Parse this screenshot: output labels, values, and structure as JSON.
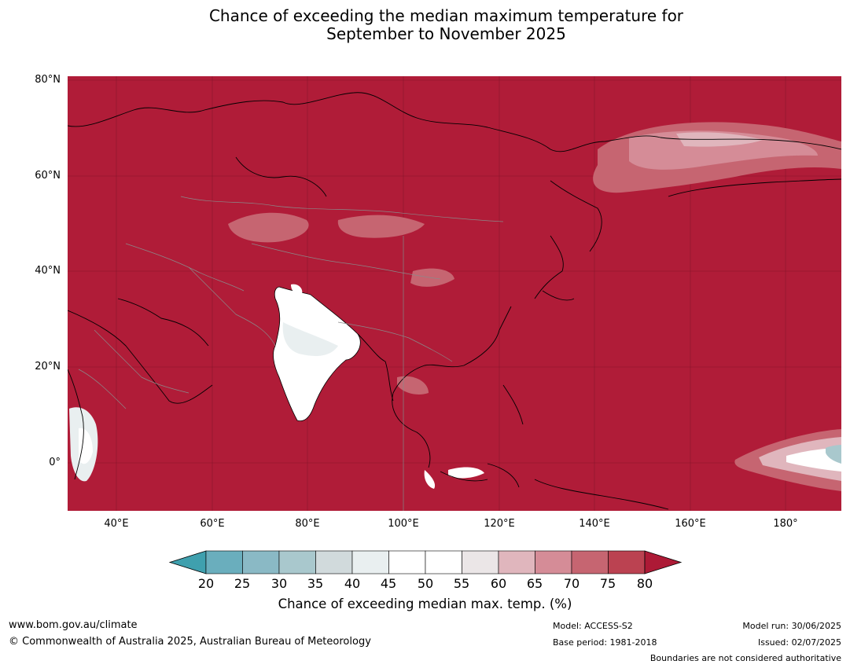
{
  "title": {
    "line1": "Chance of exceeding the median maximum temperature for",
    "line2": "September to November 2025"
  },
  "map": {
    "lat_labels": [
      "80°N",
      "60°N",
      "40°N",
      "20°N",
      "0°"
    ],
    "lon_labels": [
      "40°E",
      "60°E",
      "80°E",
      "100°E",
      "120°E",
      "140°E",
      "160°E",
      "180°"
    ],
    "extent": {
      "lon_min": 30,
      "lon_max": 191,
      "lat_min": -10,
      "lat_max": 81
    },
    "background_color": "#b01c38"
  },
  "colorbar": {
    "ticks": [
      "20",
      "25",
      "30",
      "35",
      "40",
      "45",
      "50",
      "55",
      "60",
      "65",
      "70",
      "75",
      "80"
    ],
    "colors": [
      "#3fa0ae",
      "#6aaebd",
      "#8ab9c5",
      "#a9c8cd",
      "#d1dadc",
      "#e9eff0",
      "#ffffff",
      "#ffffff",
      "#ebe6e7",
      "#e0b6bd",
      "#d58c97",
      "#c66571",
      "#bb4251",
      "#ad1a36"
    ],
    "label": "Chance of exceeding median max. temp. (%)"
  },
  "footer": {
    "website": "www.bom.gov.au/climate",
    "copyright": "© Commonwealth of Australia 2025, Australian Bureau of Meteorology",
    "model": "Model: ACCESS-S2",
    "base_period": "Base period: 1981-2018",
    "model_run": "Model run: 30/06/2025",
    "issued": "Issued: 02/07/2025",
    "disclaimer": "Boundaries are not considered authoritative"
  }
}
